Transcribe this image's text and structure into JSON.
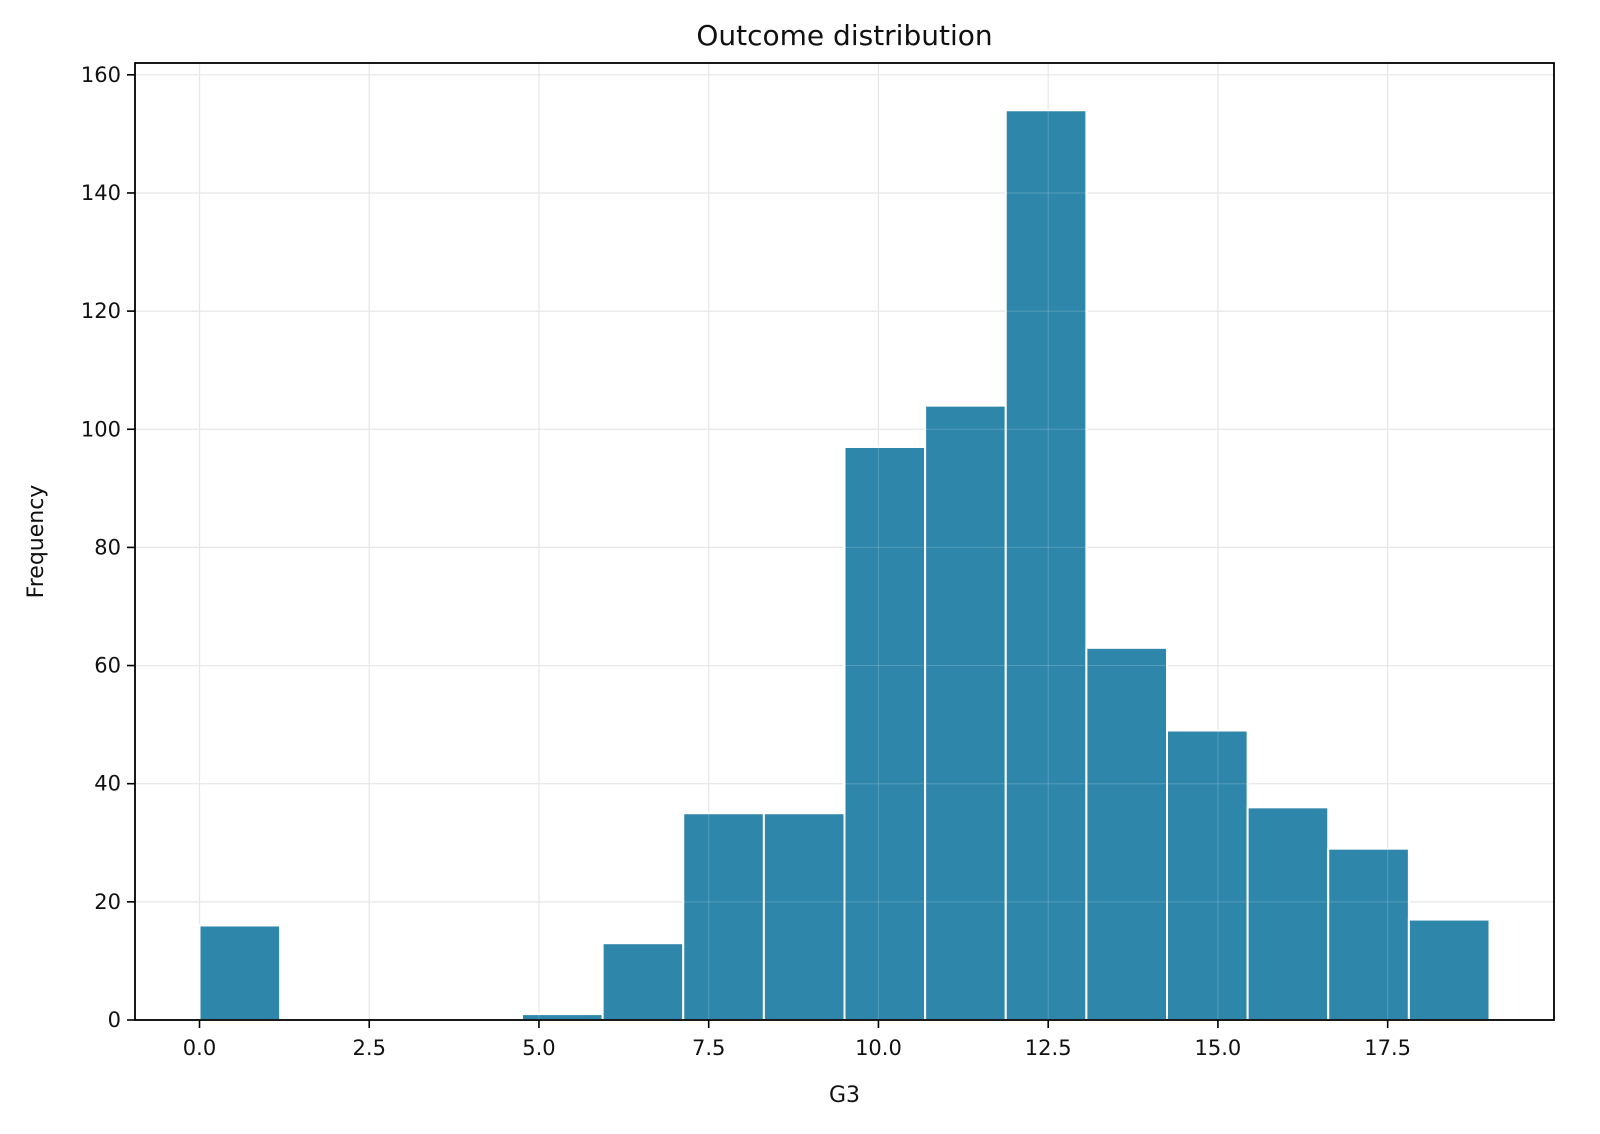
{
  "chart_data": {
    "type": "bar",
    "title": "Outcome distribution",
    "xlabel": "G3",
    "ylabel": "Frequency",
    "bin_edges": [
      0.0,
      1.1875,
      2.375,
      3.5625,
      4.75,
      5.9375,
      7.125,
      8.3125,
      9.5,
      10.6875,
      11.875,
      13.0625,
      14.25,
      15.4375,
      16.625,
      17.8125,
      19.0
    ],
    "values": [
      16,
      0,
      0,
      0,
      1,
      13,
      35,
      35,
      97,
      104,
      154,
      63,
      49,
      36,
      29,
      17
    ],
    "xlim": [
      -0.95,
      19.95
    ],
    "ylim": [
      0,
      162
    ],
    "xticks": [
      0.0,
      2.5,
      5.0,
      7.5,
      10.0,
      12.5,
      15.0,
      17.5
    ],
    "xtick_labels": [
      "0.0",
      "2.5",
      "5.0",
      "7.5",
      "10.0",
      "12.5",
      "15.0",
      "17.5"
    ],
    "yticks": [
      0,
      20,
      40,
      60,
      80,
      100,
      120,
      140,
      160
    ],
    "ytick_labels": [
      "0",
      "20",
      "40",
      "60",
      "80",
      "100",
      "120",
      "140",
      "160"
    ],
    "grid": true,
    "bar_color": "#2e86ab",
    "bar_edge_color": "#ffffff"
  }
}
